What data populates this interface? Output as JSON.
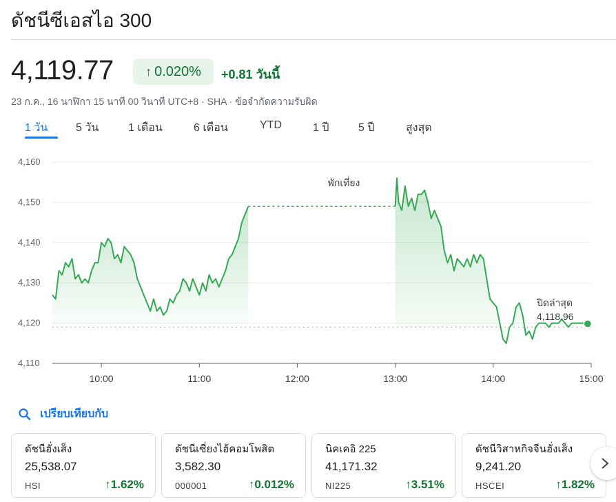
{
  "header": {
    "title": "ดัชนีซีเอสไอ 300"
  },
  "quote": {
    "price": "4,119.77",
    "change_pct": "0.020%",
    "change_abs": "+0.81 วันนี้",
    "meta": "23 ก.ค., 16 นาฬิกา 15 นาที 00 วินาที UTC+8 · SHA · ข้อจำกัดความรับผิด"
  },
  "tabs": [
    "1 วัน",
    "5 วัน",
    "1 เดือน",
    "6 เดือน",
    "YTD",
    "1 ปี",
    "5 ปี",
    "สูงสุด"
  ],
  "active_tab": "1 วัน",
  "colors": {
    "up": "#137333",
    "line": "#34a853",
    "accent": "#1a73e8"
  },
  "chart_data": {
    "type": "area",
    "y_ticks": [
      "4,160",
      "4,150",
      "4,140",
      "4,130",
      "4,120",
      "4,110"
    ],
    "x_ticks": [
      "10:00",
      "11:00",
      "12:00",
      "13:00",
      "14:00",
      "15:00"
    ],
    "ylim": [
      4110,
      4160
    ],
    "xlim": [
      "09:30",
      "15:00"
    ],
    "lunch_label": "พักเที่ยง",
    "lunch_break": [
      "11:30",
      "13:00"
    ],
    "previous_close_label": "ปิดล่าสุด",
    "previous_close_value": "4,118.96",
    "previous_close": 4118.96,
    "series": [
      {
        "points": [
          [
            "09:30",
            4127
          ],
          [
            "09:32",
            4126
          ],
          [
            "09:34",
            4133
          ],
          [
            "09:36",
            4132
          ],
          [
            "09:38",
            4135
          ],
          [
            "09:40",
            4134
          ],
          [
            "09:42",
            4136
          ],
          [
            "09:44",
            4131
          ],
          [
            "09:46",
            4132
          ],
          [
            "09:48",
            4130
          ],
          [
            "09:50",
            4131
          ],
          [
            "09:52",
            4130
          ],
          [
            "09:54",
            4133
          ],
          [
            "09:56",
            4135
          ],
          [
            "09:58",
            4135
          ],
          [
            "10:00",
            4140
          ],
          [
            "10:02",
            4139
          ],
          [
            "10:04",
            4141
          ],
          [
            "10:06",
            4140
          ],
          [
            "10:08",
            4136
          ],
          [
            "10:10",
            4137
          ],
          [
            "10:12",
            4135
          ],
          [
            "10:14",
            4139
          ],
          [
            "10:16",
            4138
          ],
          [
            "10:18",
            4137
          ],
          [
            "10:20",
            4135
          ],
          [
            "10:22",
            4131
          ],
          [
            "10:24",
            4129
          ],
          [
            "10:26",
            4127
          ],
          [
            "10:28",
            4125
          ],
          [
            "10:30",
            4123
          ],
          [
            "10:32",
            4126
          ],
          [
            "10:34",
            4123
          ],
          [
            "10:36",
            4124
          ],
          [
            "10:38",
            4122
          ],
          [
            "10:40",
            4123
          ],
          [
            "10:42",
            4126
          ],
          [
            "10:44",
            4125
          ],
          [
            "10:46",
            4127
          ],
          [
            "10:48",
            4128
          ],
          [
            "10:50",
            4131
          ],
          [
            "10:52",
            4130
          ],
          [
            "10:54",
            4128
          ],
          [
            "10:56",
            4131
          ],
          [
            "10:58",
            4129
          ],
          [
            "11:00",
            4127
          ],
          [
            "11:02",
            4130
          ],
          [
            "11:04",
            4128
          ],
          [
            "11:06",
            4132
          ],
          [
            "11:08",
            4130
          ],
          [
            "11:10",
            4131
          ],
          [
            "11:12",
            4129
          ],
          [
            "11:14",
            4131
          ],
          [
            "11:16",
            4133
          ],
          [
            "11:18",
            4136
          ],
          [
            "11:20",
            4137
          ],
          [
            "11:22",
            4139
          ],
          [
            "11:24",
            4141
          ],
          [
            "11:26",
            4145
          ],
          [
            "11:28",
            4147
          ],
          [
            "11:30",
            4149
          ],
          [
            "13:00",
            4149
          ],
          [
            "13:01",
            4156
          ],
          [
            "13:02",
            4150
          ],
          [
            "13:04",
            4148
          ],
          [
            "13:06",
            4154
          ],
          [
            "13:08",
            4149
          ],
          [
            "13:10",
            4151
          ],
          [
            "13:12",
            4148
          ],
          [
            "13:14",
            4152
          ],
          [
            "13:16",
            4152
          ],
          [
            "13:18",
            4153
          ],
          [
            "13:20",
            4150
          ],
          [
            "13:22",
            4146
          ],
          [
            "13:24",
            4148
          ],
          [
            "13:26",
            4146
          ],
          [
            "13:28",
            4144
          ],
          [
            "13:30",
            4138
          ],
          [
            "13:32",
            4135
          ],
          [
            "13:34",
            4137
          ],
          [
            "13:36",
            4133
          ],
          [
            "13:38",
            4136
          ],
          [
            "13:40",
            4135
          ],
          [
            "13:42",
            4134
          ],
          [
            "13:44",
            4136
          ],
          [
            "13:46",
            4134
          ],
          [
            "13:48",
            4137
          ],
          [
            "13:50",
            4135
          ],
          [
            "13:52",
            4137
          ],
          [
            "13:54",
            4136
          ],
          [
            "13:56",
            4131
          ],
          [
            "13:58",
            4126
          ],
          [
            "14:00",
            4125
          ],
          [
            "14:02",
            4124
          ],
          [
            "14:04",
            4120
          ],
          [
            "14:06",
            4116
          ],
          [
            "14:08",
            4115
          ],
          [
            "14:10",
            4119
          ],
          [
            "14:12",
            4120
          ],
          [
            "14:14",
            4124
          ],
          [
            "14:16",
            4125
          ],
          [
            "14:18",
            4122
          ],
          [
            "14:20",
            4117
          ],
          [
            "14:22",
            4118
          ],
          [
            "14:24",
            4116
          ],
          [
            "14:26",
            4119
          ],
          [
            "14:28",
            4120
          ],
          [
            "14:30",
            4120
          ],
          [
            "14:32",
            4120
          ],
          [
            "14:34",
            4119
          ],
          [
            "14:36",
            4120
          ],
          [
            "14:38",
            4120
          ],
          [
            "14:40",
            4120
          ],
          [
            "14:42",
            4121
          ],
          [
            "14:44",
            4120
          ],
          [
            "14:46",
            4119
          ],
          [
            "14:48",
            4120
          ],
          [
            "14:50",
            4120
          ],
          [
            "14:52",
            4120
          ],
          [
            "14:54",
            4120
          ],
          [
            "14:57",
            4120
          ]
        ]
      }
    ]
  },
  "compare": {
    "label": "เปรียบเทียบกับ"
  },
  "cards": [
    {
      "name": "ดัชนีฮั่งเส็ง",
      "value": "25,538.07",
      "ticker": "HSI",
      "change": "1.62%"
    },
    {
      "name": "ดัชนีเซี่ยงไฮ้คอมโพสิต",
      "value": "3,582.30",
      "ticker": "000001",
      "change": "0.012%"
    },
    {
      "name": "นิคเคอิ 225",
      "value": "41,171.32",
      "ticker": "NI225",
      "change": "3.51%"
    },
    {
      "name": "ดัชนีวิสาหกิจจีนฮั่งเส็ง",
      "value": "9,241.20",
      "ticker": "HSCEI",
      "change": "1.82%"
    }
  ]
}
